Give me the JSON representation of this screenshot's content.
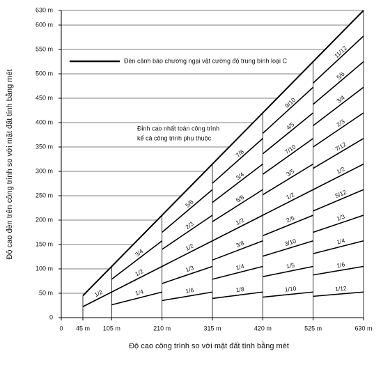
{
  "chart_data": {
    "type": "line",
    "xlabel": "Độ cao công trình so với mặt đất tính bằng mét",
    "ylabel": "Độ cao đèn trên công trình so với mặt đất tính bằng mét",
    "legend": "Đèn cảnh báo chướng ngại vật cường độ trung bình loại C",
    "annotation": [
      "Đỉnh cao nhất toàn công trình",
      "kể cả công trình phụ thuộc"
    ],
    "xlim": [
      0,
      630
    ],
    "ylim": [
      0,
      630
    ],
    "xticks": [
      0,
      {
        "value": 45,
        "label": "45 m"
      },
      {
        "value": 105,
        "label": "105 m"
      },
      {
        "value": 210,
        "label": "210 m"
      },
      {
        "value": 315,
        "label": "315 m"
      },
      {
        "value": 420,
        "label": "420 m"
      },
      {
        "value": 525,
        "label": "525 m"
      },
      {
        "value": 630,
        "label": "630 m"
      }
    ],
    "yticks": [
      0,
      {
        "value": 50,
        "label": "50 m"
      },
      {
        "value": 100,
        "label": "100 m"
      },
      {
        "value": 150,
        "label": "150 m"
      },
      {
        "value": 200,
        "label": "200 m"
      },
      {
        "value": 250,
        "label": "250 m"
      },
      {
        "value": 300,
        "label": "300 m"
      },
      {
        "value": 350,
        "label": "350 m"
      },
      {
        "value": 400,
        "label": "400 m"
      },
      {
        "value": 450,
        "label": "450 m"
      },
      {
        "value": 500,
        "label": "500 m"
      },
      {
        "value": 550,
        "label": "550 m"
      },
      {
        "value": 600,
        "label": "600 m"
      },
      {
        "value": 630,
        "label": "630 m"
      }
    ],
    "summit": {
      "x": [
        45,
        630
      ],
      "y": [
        45,
        630
      ]
    },
    "sections": [
      {
        "x": [
          45,
          105
        ],
        "fractions": [
          {
            "value": 0.5,
            "label": "1/2"
          }
        ]
      },
      {
        "x": [
          105,
          210
        ],
        "fractions": [
          {
            "value": 0.75,
            "label": "3/4"
          },
          {
            "value": 0.5,
            "label": "1/2"
          },
          {
            "value": 0.25,
            "label": "1/4"
          }
        ]
      },
      {
        "x": [
          210,
          315
        ],
        "fractions": [
          {
            "value": 0.8333,
            "label": "5/6"
          },
          {
            "value": 0.6667,
            "label": "2/3"
          },
          {
            "value": 0.5,
            "label": "1/2"
          },
          {
            "value": 0.3333,
            "label": "1/3"
          },
          {
            "value": 0.1667,
            "label": "1/6"
          }
        ]
      },
      {
        "x": [
          315,
          420
        ],
        "fractions": [
          {
            "value": 0.875,
            "label": "7/8"
          },
          {
            "value": 0.75,
            "label": "3/4"
          },
          {
            "value": 0.625,
            "label": "5/8"
          },
          {
            "value": 0.5,
            "label": "1/2"
          },
          {
            "value": 0.375,
            "label": "3/8"
          },
          {
            "value": 0.25,
            "label": "1/4"
          },
          {
            "value": 0.125,
            "label": "1/8"
          }
        ]
      },
      {
        "x": [
          420,
          525
        ],
        "fractions": [
          {
            "value": 0.9,
            "label": "9/10"
          },
          {
            "value": 0.8,
            "label": "4/5"
          },
          {
            "value": 0.7,
            "label": "7/10"
          },
          {
            "value": 0.6,
            "label": "3/5"
          },
          {
            "value": 0.5,
            "label": "1/2"
          },
          {
            "value": 0.4,
            "label": "2/5"
          },
          {
            "value": 0.3,
            "label": "3/10"
          },
          {
            "value": 0.2,
            "label": "1/5"
          },
          {
            "value": 0.1,
            "label": "1/10"
          }
        ]
      },
      {
        "x": [
          525,
          630
        ],
        "fractions": [
          {
            "value": 0.9167,
            "label": "11/12"
          },
          {
            "value": 0.8333,
            "label": "5/6"
          },
          {
            "value": 0.75,
            "label": "3/4"
          },
          {
            "value": 0.6667,
            "label": "2/3"
          },
          {
            "value": 0.5833,
            "label": "7/12"
          },
          {
            "value": 0.5,
            "label": "1/2"
          },
          {
            "value": 0.4167,
            "label": "5/12"
          },
          {
            "value": 0.3333,
            "label": "1/3"
          },
          {
            "value": 0.25,
            "label": "1/4"
          },
          {
            "value": 0.1667,
            "label": "1/6"
          },
          {
            "value": 0.0833,
            "label": "1/12"
          }
        ]
      }
    ]
  }
}
